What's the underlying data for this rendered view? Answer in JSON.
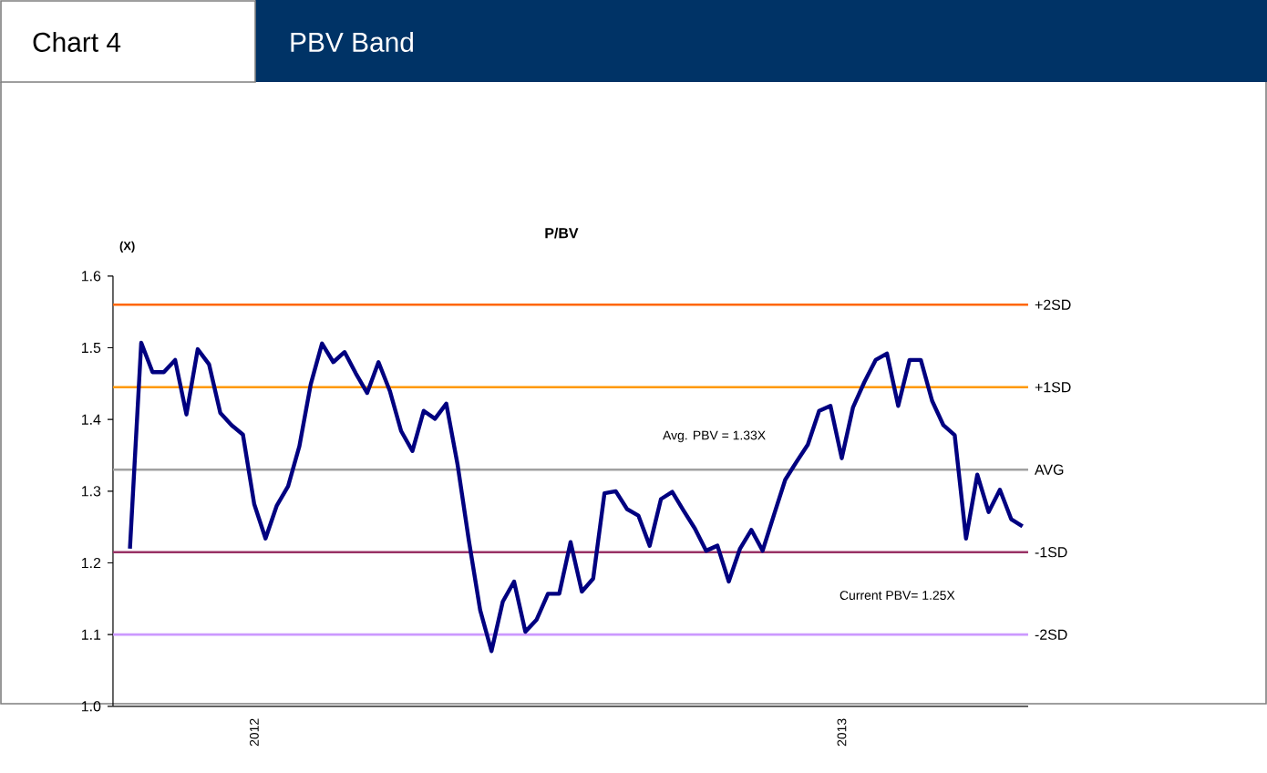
{
  "chart_data": {
    "type": "line",
    "title": "PBV Band",
    "subtitle": "P/BV",
    "ylabel": "(X)",
    "categories": [
      null,
      null,
      null,
      null,
      null,
      null,
      null,
      null,
      null,
      null,
      null,
      "2012",
      null,
      null,
      null,
      null,
      null,
      null,
      null,
      null,
      null,
      null,
      null,
      null,
      null,
      null,
      null,
      null,
      null,
      null,
      null,
      null,
      null,
      null,
      null,
      null,
      null,
      null,
      null,
      null,
      null,
      null,
      null,
      null,
      null,
      null,
      null,
      null,
      null,
      null,
      null,
      null,
      null,
      null,
      null,
      null,
      null,
      null,
      null,
      null,
      null,
      null,
      null,
      "2013",
      null,
      null,
      null,
      null,
      null,
      null,
      null,
      null,
      null,
      null,
      null,
      null,
      null,
      null,
      null,
      null
    ],
    "series": [
      {
        "color": "#000080",
        "values": [
          1.22,
          1.507,
          1.466,
          1.466,
          1.483,
          1.407,
          1.498,
          1.477,
          1.409,
          1.392,
          1.379,
          1.282,
          1.234,
          1.28,
          1.307,
          1.363,
          1.449,
          1.506,
          1.48,
          1.494,
          1.464,
          1.437,
          1.48,
          1.44,
          1.384,
          1.356,
          1.412,
          1.401,
          1.422,
          1.337,
          1.231,
          1.134,
          1.077,
          1.146,
          1.174,
          1.104,
          1.121,
          1.157,
          1.157,
          1.229,
          1.16,
          1.178,
          1.297,
          1.3,
          1.275,
          1.266,
          1.224,
          1.289,
          1.299,
          1.273,
          1.248,
          1.217,
          1.224,
          1.174,
          1.22,
          1.246,
          1.217,
          1.267,
          1.316,
          1.341,
          1.365,
          1.412,
          1.419,
          1.346,
          1.417,
          1.452,
          1.483,
          1.492,
          1.419,
          1.483,
          1.483,
          1.426,
          1.392,
          1.378,
          1.234,
          1.323,
          1.271,
          1.302,
          1.261,
          1.251
        ]
      }
    ],
    "ylim": [
      1.0,
      1.6
    ],
    "yticks": [
      {
        "value": 1.0,
        "label": "1.0"
      },
      1.1,
      1.2,
      1.3,
      1.4,
      1.5,
      1.6
    ],
    "ref_lines": [
      {
        "axis": "y",
        "value": 1.56,
        "label": "+2SD",
        "color": "#ff6600"
      },
      {
        "axis": "y",
        "value": 1.445,
        "label": "+1SD",
        "color": "#ff9900"
      },
      {
        "axis": "y",
        "value": 1.33,
        "label": "AVG",
        "color": "#a0a0a0"
      },
      {
        "axis": "y",
        "value": 1.215,
        "label": "-1SD",
        "color": "#993366"
      },
      {
        "axis": "y",
        "value": 1.1,
        "label": "-2SD",
        "color": "#cc99ff"
      }
    ],
    "annotations": [
      "Chart 4",
      "Avg. PBV = 1.33X",
      "Current PBV= 1.25X"
    ],
    "grid": false,
    "marker": "none",
    "line_style": "solid"
  }
}
